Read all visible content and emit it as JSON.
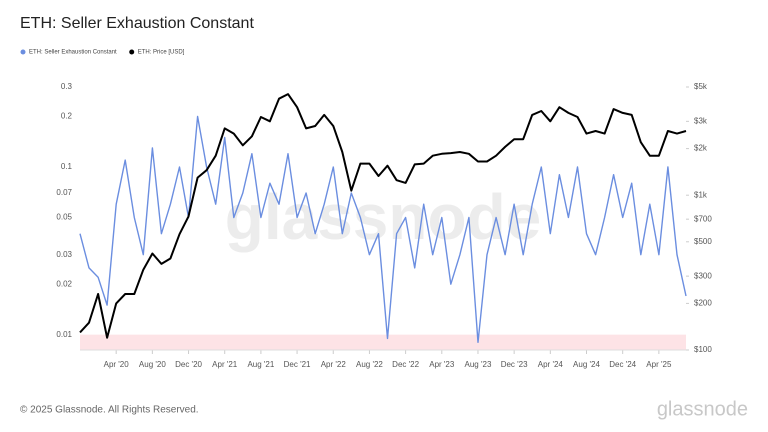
{
  "chart_data": {
    "type": "line",
    "title": "ETH: Seller Exhaustion Constant",
    "x": [
      "2019-12",
      "2020-01",
      "2020-02",
      "2020-03",
      "2020-04",
      "2020-05",
      "2020-06",
      "2020-07",
      "2020-08",
      "2020-09",
      "2020-10",
      "2020-11",
      "2020-12",
      "2021-01",
      "2021-02",
      "2021-03",
      "2021-04",
      "2021-05",
      "2021-06",
      "2021-07",
      "2021-08",
      "2021-09",
      "2021-10",
      "2021-11",
      "2021-12",
      "2022-01",
      "2022-02",
      "2022-03",
      "2022-04",
      "2022-05",
      "2022-06",
      "2022-07",
      "2022-08",
      "2022-09",
      "2022-10",
      "2022-11",
      "2022-12",
      "2023-01",
      "2023-02",
      "2023-03",
      "2023-04",
      "2023-05",
      "2023-06",
      "2023-07",
      "2023-08",
      "2023-09",
      "2023-10",
      "2023-11",
      "2023-12",
      "2024-01",
      "2024-02",
      "2024-03",
      "2024-04",
      "2024-05",
      "2024-06",
      "2024-07",
      "2024-08",
      "2024-09",
      "2024-10",
      "2024-11",
      "2024-12",
      "2025-01",
      "2025-02",
      "2025-03",
      "2025-04",
      "2025-05",
      "2025-06",
      "2025-07"
    ],
    "xlim": [
      "2019-12",
      "2025-07"
    ],
    "xticks": [
      {
        "value": "2020-04",
        "label": "Apr '20"
      },
      {
        "value": "2020-08",
        "label": "Aug '20"
      },
      {
        "value": "2020-12",
        "label": "Dec '20"
      },
      {
        "value": "2021-04",
        "label": "Apr '21"
      },
      {
        "value": "2021-08",
        "label": "Aug '21"
      },
      {
        "value": "2021-12",
        "label": "Dec '21"
      },
      {
        "value": "2022-04",
        "label": "Apr '22"
      },
      {
        "value": "2022-08",
        "label": "Aug '22"
      },
      {
        "value": "2022-12",
        "label": "Dec '22"
      },
      {
        "value": "2023-04",
        "label": "Apr '23"
      },
      {
        "value": "2023-08",
        "label": "Aug '23"
      },
      {
        "value": "2023-12",
        "label": "Dec '23"
      },
      {
        "value": "2024-04",
        "label": "Apr '24"
      },
      {
        "value": "2024-08",
        "label": "Aug '24"
      },
      {
        "value": "2024-12",
        "label": "Dec '24"
      },
      {
        "value": "2025-04",
        "label": "Apr '25"
      }
    ],
    "ylim": [
      0.0081,
      0.3
    ],
    "yticks": [
      0.01,
      0.02,
      0.03,
      0.05,
      0.07,
      0.1,
      0.2,
      0.3
    ],
    "y_log": true,
    "y2lim": [
      100,
      5000
    ],
    "y2ticks": [
      {
        "value": 100,
        "label": "$100"
      },
      {
        "value": 200,
        "label": "$200"
      },
      {
        "value": 300,
        "label": "$300"
      },
      {
        "value": 500,
        "label": "$500"
      },
      {
        "value": 700,
        "label": "$700"
      },
      {
        "value": 1000,
        "label": "$1k"
      },
      {
        "value": 2000,
        "label": "$2k"
      },
      {
        "value": 3000,
        "label": "$3k"
      },
      {
        "value": 5000,
        "label": "$5k"
      }
    ],
    "y2_log": true,
    "highlight_below": 0.01,
    "highlight_color": "#fde3e6",
    "grid": false,
    "legend": "top-left",
    "series": [
      {
        "name": "ETH: Seller Exhaustion Constant",
        "color": "#6b8ee0",
        "values": [
          0.04,
          0.025,
          0.022,
          0.015,
          0.06,
          0.11,
          0.05,
          0.03,
          0.13,
          0.04,
          0.06,
          0.1,
          0.05,
          0.2,
          0.1,
          0.06,
          0.15,
          0.05,
          0.07,
          0.12,
          0.05,
          0.08,
          0.06,
          0.12,
          0.05,
          0.07,
          0.04,
          0.06,
          0.1,
          0.04,
          0.07,
          0.05,
          0.03,
          0.04,
          0.0095,
          0.04,
          0.05,
          0.025,
          0.06,
          0.03,
          0.05,
          0.02,
          0.03,
          0.05,
          0.009,
          0.03,
          0.05,
          0.03,
          0.06,
          0.03,
          0.06,
          0.1,
          0.04,
          0.09,
          0.05,
          0.1,
          0.04,
          0.03,
          0.05,
          0.09,
          0.05,
          0.08,
          0.03,
          0.06,
          0.03,
          0.1,
          0.03,
          0.017
        ]
      },
      {
        "name": "ETH: Price [USD]",
        "color": "#000000",
        "axis": "y2",
        "values": [
          130,
          150,
          230,
          120,
          200,
          230,
          230,
          330,
          420,
          360,
          390,
          560,
          730,
          1300,
          1450,
          1800,
          2700,
          2500,
          2100,
          2400,
          3200,
          3000,
          4200,
          4500,
          3700,
          2700,
          2800,
          3300,
          2800,
          1900,
          1070,
          1600,
          1600,
          1330,
          1550,
          1250,
          1200,
          1580,
          1600,
          1800,
          1850,
          1870,
          1900,
          1850,
          1650,
          1650,
          1800,
          2050,
          2300,
          2300,
          3300,
          3500,
          3000,
          3700,
          3400,
          3200,
          2500,
          2600,
          2500,
          3600,
          3400,
          3300,
          2200,
          1800,
          1800,
          2600,
          2500,
          2600
        ]
      }
    ]
  },
  "watermark": "glassnode",
  "footer": {
    "copyright": "© 2025 Glassnode. All Rights Reserved.",
    "logo": "glassnode"
  }
}
